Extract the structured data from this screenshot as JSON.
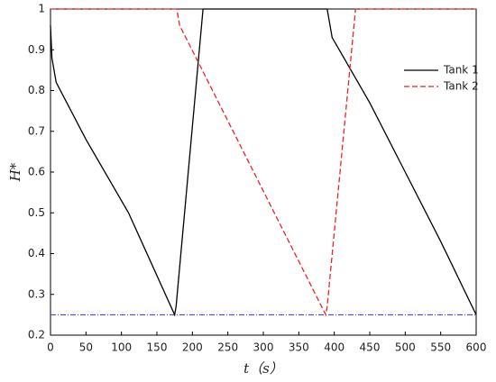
{
  "chart_data": {
    "type": "line",
    "xlabel": "t（s）",
    "ylabel": "H*",
    "xlim": [
      0,
      600
    ],
    "xticks": [
      0,
      50,
      100,
      150,
      200,
      250,
      300,
      350,
      400,
      450,
      500,
      550,
      600
    ],
    "ylim": [
      0.2,
      1.0
    ],
    "yticks": [
      0.2,
      0.3,
      0.4,
      0.5,
      0.6,
      0.7,
      0.8,
      0.9,
      1.0
    ],
    "legend": "upper right",
    "hline": {
      "value": 0.25,
      "color": "#3333cc"
    },
    "series": [
      {
        "name": "Tank  1",
        "color": "#000000",
        "style": "solid",
        "x": [
          0,
          2,
          8,
          50,
          110,
          175,
          177,
          215,
          390,
          397,
          450,
          500,
          550,
          600
        ],
        "values": [
          0.96,
          0.88,
          0.82,
          0.68,
          0.5,
          0.25,
          0.27,
          1.0,
          1.0,
          0.93,
          0.77,
          0.6,
          0.43,
          0.25
        ]
      },
      {
        "name": "Tank  2",
        "color": "#ee2222",
        "style": "dashed",
        "x": [
          0,
          178,
          182,
          388,
          390,
          430,
          600
        ],
        "values": [
          1.0,
          1.0,
          0.96,
          0.25,
          0.27,
          1.0,
          1.0
        ]
      }
    ]
  }
}
